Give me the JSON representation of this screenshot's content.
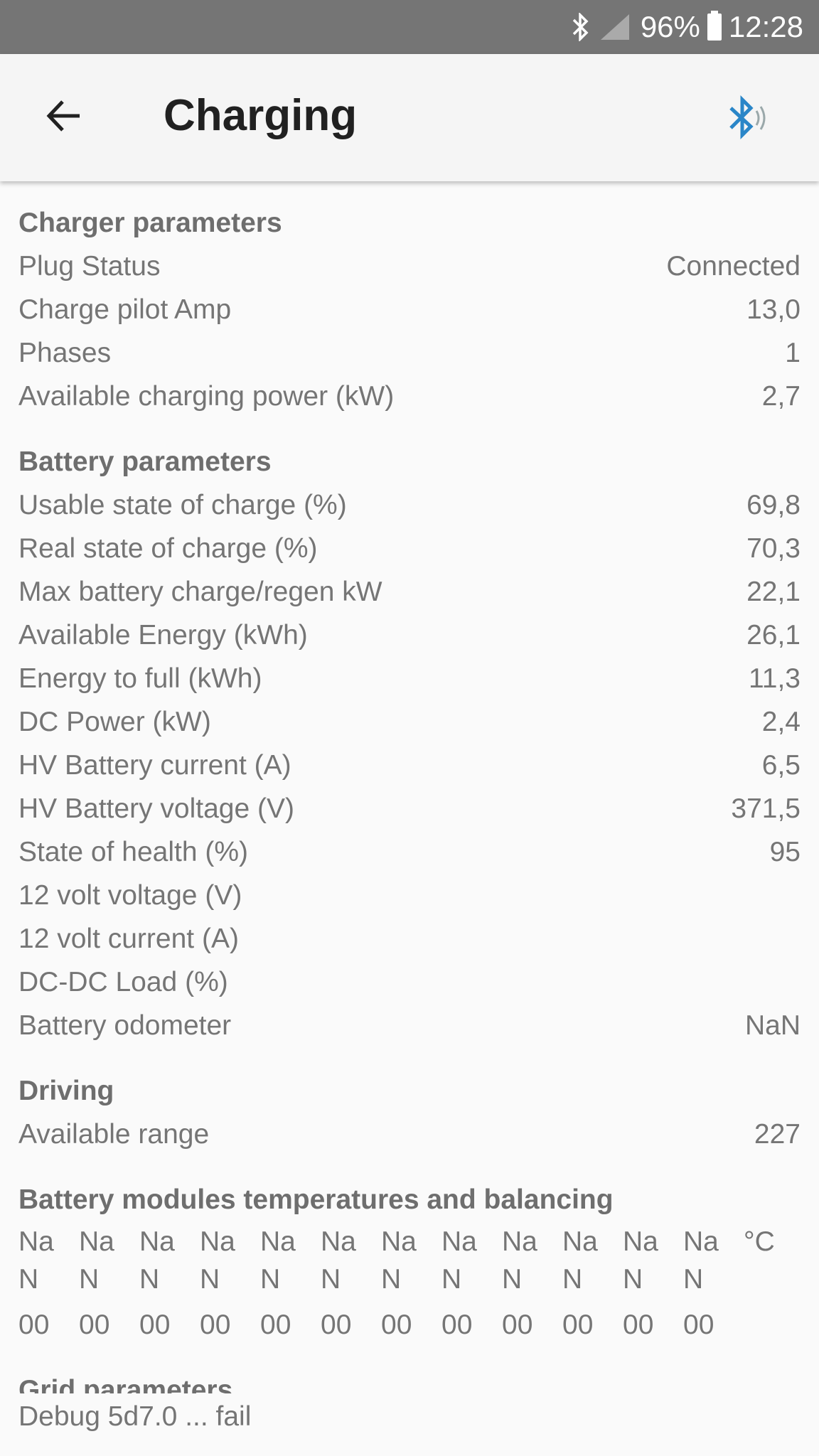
{
  "status_bar": {
    "battery": "96%",
    "time": "12:28",
    "icons": [
      "bluetooth-icon",
      "signal-icon",
      "battery-icon"
    ]
  },
  "toolbar": {
    "title": "Charging",
    "bluetooth_color": "#2a86c8"
  },
  "sections": [
    {
      "title": "Charger parameters",
      "rows": [
        {
          "label": "Plug Status",
          "value": "Connected"
        },
        {
          "label": "Charge pilot Amp",
          "value": "13,0"
        },
        {
          "label": "Phases",
          "value": "1"
        },
        {
          "label": "Available charging power (kW)",
          "value": "2,7"
        }
      ]
    },
    {
      "title": "Battery parameters",
      "rows": [
        {
          "label": "Usable state of charge (%)",
          "value": "69,8"
        },
        {
          "label": "Real state of charge (%)",
          "value": "70,3"
        },
        {
          "label": "Max battery charge/regen kW",
          "value": "22,1"
        },
        {
          "label": "Available Energy (kWh)",
          "value": "26,1"
        },
        {
          "label": "Energy to full (kWh)",
          "value": "11,3"
        },
        {
          "label": "DC Power (kW)",
          "value": "2,4"
        },
        {
          "label": "HV Battery current (A)",
          "value": "6,5"
        },
        {
          "label": "HV Battery voltage (V)",
          "value": "371,5"
        },
        {
          "label": "State of health (%)",
          "value": "95"
        },
        {
          "label": "12 volt voltage (V)",
          "value": ""
        },
        {
          "label": "12 volt current (A)",
          "value": ""
        },
        {
          "label": "DC-DC Load (%)",
          "value": ""
        },
        {
          "label": "Battery odometer",
          "value": "NaN"
        }
      ]
    },
    {
      "title": "Driving",
      "rows": [
        {
          "label": "Available range",
          "value": "227"
        }
      ]
    }
  ],
  "modules": {
    "title": "Battery modules temperatures and balancing",
    "unit": "°C",
    "temps": [
      "NaN",
      "NaN",
      "NaN",
      "NaN",
      "NaN",
      "NaN",
      "NaN",
      "NaN",
      "NaN",
      "NaN",
      "NaN",
      "NaN"
    ],
    "balancing": [
      "00",
      "00",
      "00",
      "00",
      "00",
      "00",
      "00",
      "00",
      "00",
      "00",
      "00",
      "00"
    ]
  },
  "grid": {
    "title": "Grid parameters"
  },
  "footer": {
    "debug": "Debug 5d7.0 ... fail"
  }
}
